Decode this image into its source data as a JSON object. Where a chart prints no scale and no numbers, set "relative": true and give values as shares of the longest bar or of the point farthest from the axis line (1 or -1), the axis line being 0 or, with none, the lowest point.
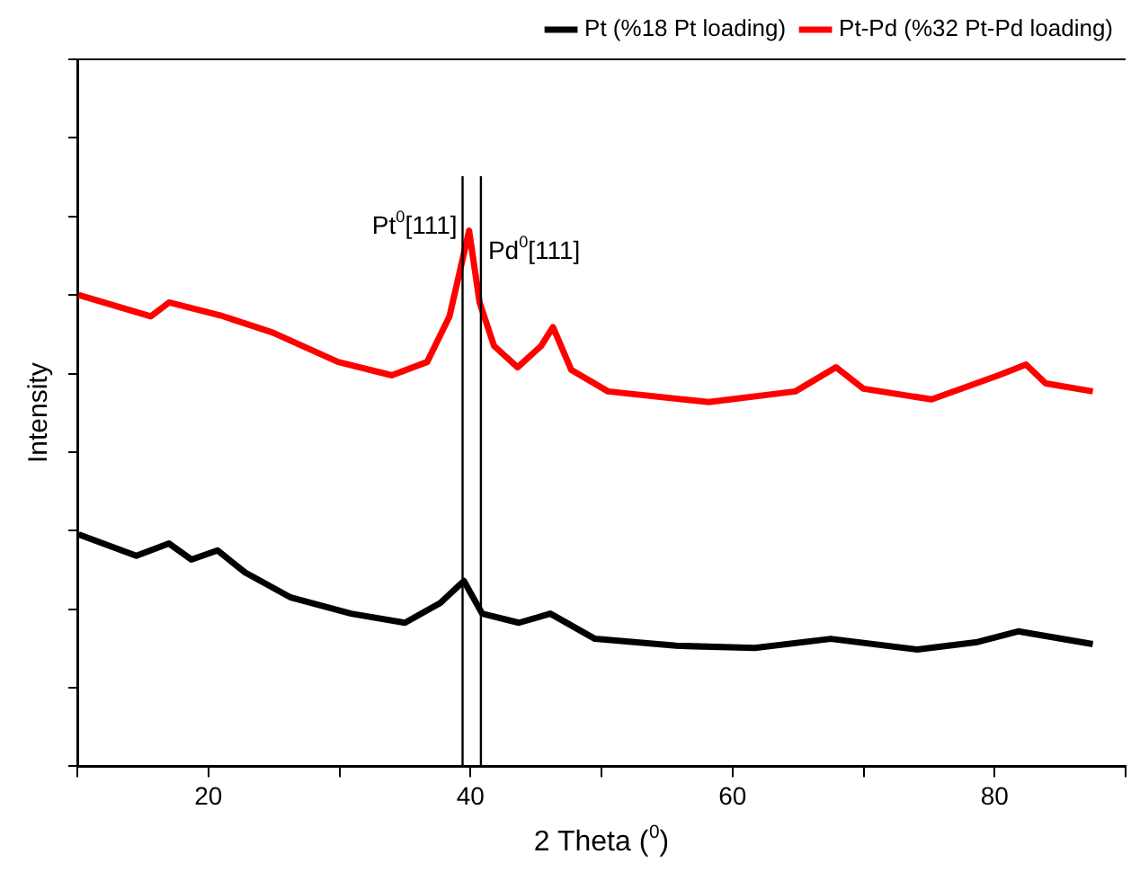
{
  "chart_data": {
    "type": "line",
    "xlabel": "2 Theta ($^{0}$)",
    "ylabel": "Intensity",
    "relative": true,
    "xlim": [
      10,
      90
    ],
    "xticks": [
      {
        "value": 10,
        "label": null
      },
      20,
      {
        "value": 30,
        "label": null
      },
      40,
      {
        "value": 50,
        "label": null
      },
      60,
      {
        "value": 70,
        "label": null
      },
      80,
      {
        "value": 90,
        "label": null
      }
    ],
    "grid": false,
    "legend": "top right",
    "marker": "none",
    "line_style": "solid",
    "ref_lines": [
      {
        "axis": "x",
        "value": 39.4,
        "label": "Pt$^{0}$[111]",
        "color": "#000000"
      },
      {
        "axis": "x",
        "value": 40.8,
        "label": "Pd$^{0}$[111]",
        "color": "#000000"
      }
    ],
    "series": [
      {
        "name": "Pt (%18 Pt loading)",
        "color": "#000000",
        "x": [
          10.1,
          14.5,
          17.0,
          18.7,
          20.7,
          22.8,
          26.3,
          30.9,
          35.0,
          37.7,
          39.5,
          40.9,
          43.7,
          46.1,
          49.5,
          55.7,
          61.7,
          67.5,
          74.1,
          78.7,
          81.8,
          87.5
        ],
        "values": [
          0.433,
          0.393,
          0.416,
          0.386,
          0.403,
          0.362,
          0.315,
          0.285,
          0.268,
          0.305,
          0.346,
          0.285,
          0.268,
          0.285,
          0.238,
          0.225,
          0.221,
          0.238,
          0.218,
          0.232,
          0.252,
          0.228
        ]
      },
      {
        "name": "Pt-Pd (%32 Pt-Pd loading)",
        "color": "#ff0000",
        "x": [
          10.1,
          15.6,
          17.0,
          20.9,
          24.9,
          29.9,
          34.0,
          36.7,
          38.4,
          39.9,
          40.7,
          41.8,
          43.6,
          45.4,
          46.3,
          47.7,
          50.5,
          58.2,
          64.8,
          67.9,
          70.0,
          75.2,
          80.3,
          82.4,
          83.9,
          87.5
        ],
        "values": [
          0.88,
          0.84,
          0.866,
          0.842,
          0.81,
          0.755,
          0.73,
          0.755,
          0.84,
          1,
          0.866,
          0.785,
          0.745,
          0.785,
          0.82,
          0.74,
          0.7,
          0.68,
          0.7,
          0.745,
          0.705,
          0.685,
          0.73,
          0.75,
          0.715,
          0.7
        ]
      }
    ]
  }
}
